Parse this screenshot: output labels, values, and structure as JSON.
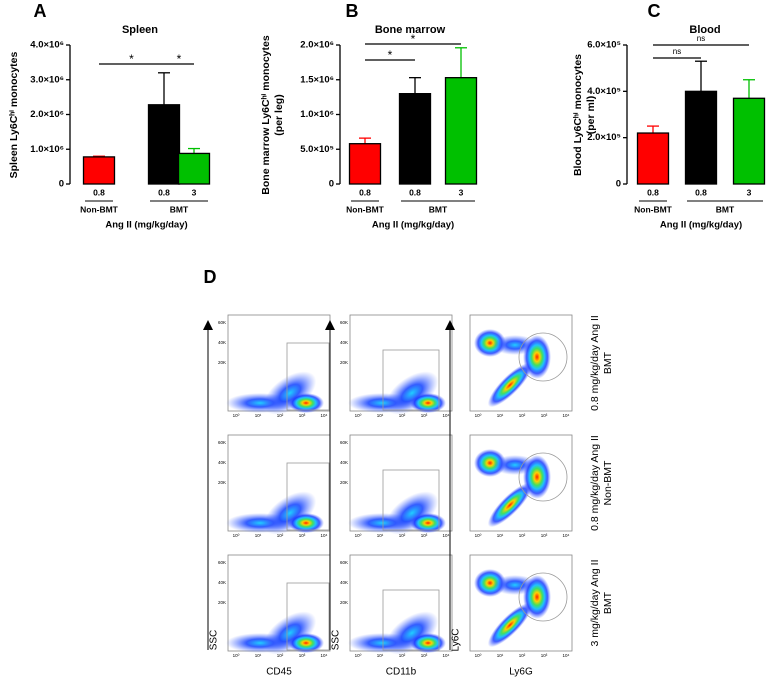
{
  "chart_data": [
    {
      "type": "bar",
      "panel": "A",
      "title": "Spleen",
      "ylabel": [
        "Spleen Ly6Cʰⁱ monocytes"
      ],
      "categories": [
        "0.8",
        "0.8",
        "3"
      ],
      "groups": [
        "Non-BMT",
        "BMT"
      ],
      "xlabel": "Ang II (mg/kg/day)",
      "values": [
        780000,
        2280000,
        880000
      ],
      "errors": [
        20000,
        920000,
        140000
      ],
      "colors": [
        "#ff0000",
        "#000000",
        "#00c000"
      ],
      "ylim": [
        0,
        4000000
      ],
      "yticks": [
        0,
        {
          "value": 1000000,
          "label": "1.0×10⁶"
        },
        {
          "value": 2000000,
          "label": "2.0×10⁶"
        },
        {
          "value": 3000000,
          "label": "3.0×10⁶"
        },
        {
          "value": 4000000,
          "label": "4.0×10⁶"
        }
      ],
      "significance": [
        "*",
        "*"
      ]
    },
    {
      "type": "bar",
      "panel": "B",
      "title": "Bone marrow",
      "ylabel": [
        "Bone marrow Ly6Cʰⁱ monocytes",
        "(per leg)"
      ],
      "categories": [
        "0.8",
        "0.8",
        "3"
      ],
      "groups": [
        "Non-BMT",
        "BMT"
      ],
      "xlabel": "Ang II (mg/kg/day)",
      "values": [
        580000,
        1300000,
        1530000
      ],
      "errors": [
        80000,
        230000,
        430000
      ],
      "colors": [
        "#ff0000",
        "#000000",
        "#00c000"
      ],
      "ylim": [
        0,
        2000000
      ],
      "yticks": [
        0,
        {
          "value": 500000,
          "label": "5.0×10⁵"
        },
        {
          "value": 1000000,
          "label": "1.0×10⁶"
        },
        {
          "value": 1500000,
          "label": "1.5×10⁶"
        },
        {
          "value": 2000000,
          "label": "2.0×10⁶"
        }
      ],
      "significance": [
        "*",
        "*"
      ]
    },
    {
      "type": "bar",
      "panel": "C",
      "title": "Blood",
      "ylabel": [
        "Blood Ly6Cʰⁱ monocytes",
        "(per ml)"
      ],
      "categories": [
        "0.8",
        "0.8",
        "3"
      ],
      "groups": [
        "Non-BMT",
        "BMT"
      ],
      "xlabel": "Ang II (mg/kg/day)",
      "values": [
        220000,
        400000,
        370000
      ],
      "errors": [
        30000,
        130000,
        80000
      ],
      "colors": [
        "#ff0000",
        "#000000",
        "#00c000"
      ],
      "ylim": [
        0,
        600000
      ],
      "yticks": [
        0,
        {
          "value": 200000,
          "label": "2.0×10⁵"
        },
        {
          "value": 400000,
          "label": "4.0×10⁵"
        },
        {
          "value": 600000,
          "label": "6.0×10⁵"
        }
      ],
      "significance": [
        "ns",
        "ns"
      ]
    }
  ],
  "panel_d": {
    "letter": "D",
    "ylabels": [
      "SSC",
      "SSC",
      "Ly6C"
    ],
    "xlabels": [
      "CD45",
      "CD11b",
      "Ly6G"
    ],
    "rows": [
      [
        "0.8 mg/kg/day Ang II",
        "BMT"
      ],
      [
        "0.8 mg/kg/day Ang II",
        "Non-BMT"
      ],
      [
        "3 mg/kg/day Ang II",
        "BMT"
      ]
    ],
    "scatter_yticks": [
      "60K",
      "40K",
      "20K",
      "0"
    ],
    "log_ticks": [
      "10⁰",
      "10¹",
      "10²",
      "10³",
      "10⁴"
    ]
  }
}
